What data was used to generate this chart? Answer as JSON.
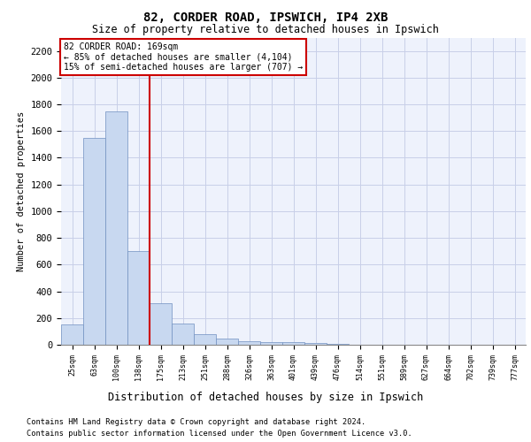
{
  "title1": "82, CORDER ROAD, IPSWICH, IP4 2XB",
  "title2": "Size of property relative to detached houses in Ipswich",
  "xlabel": "Distribution of detached houses by size in Ipswich",
  "ylabel": "Number of detached properties",
  "footnote1": "Contains HM Land Registry data © Crown copyright and database right 2024.",
  "footnote2": "Contains public sector information licensed under the Open Government Licence v3.0.",
  "categories": [
    "25sqm",
    "63sqm",
    "100sqm",
    "138sqm",
    "175sqm",
    "213sqm",
    "251sqm",
    "288sqm",
    "326sqm",
    "363sqm",
    "401sqm",
    "439sqm",
    "476sqm",
    "514sqm",
    "551sqm",
    "589sqm",
    "627sqm",
    "664sqm",
    "702sqm",
    "739sqm",
    "777sqm"
  ],
  "values": [
    150,
    1550,
    1750,
    700,
    310,
    160,
    80,
    45,
    25,
    20,
    20,
    10,
    5,
    2,
    1,
    1,
    0,
    0,
    0,
    0,
    0
  ],
  "bar_color": "#c8d8f0",
  "bar_edge_color": "#7090c0",
  "vline_color": "#cc0000",
  "ylim": [
    0,
    2300
  ],
  "yticks": [
    0,
    200,
    400,
    600,
    800,
    1000,
    1200,
    1400,
    1600,
    1800,
    2000,
    2200
  ],
  "annotation_title": "82 CORDER ROAD: 169sqm",
  "annotation_line1": "← 85% of detached houses are smaller (4,104)",
  "annotation_line2": "15% of semi-detached houses are larger (707) →",
  "annotation_box_color": "#cc0000",
  "background_color": "#eef2fc",
  "grid_color": "#c8cfe8",
  "vline_position": 3.5
}
